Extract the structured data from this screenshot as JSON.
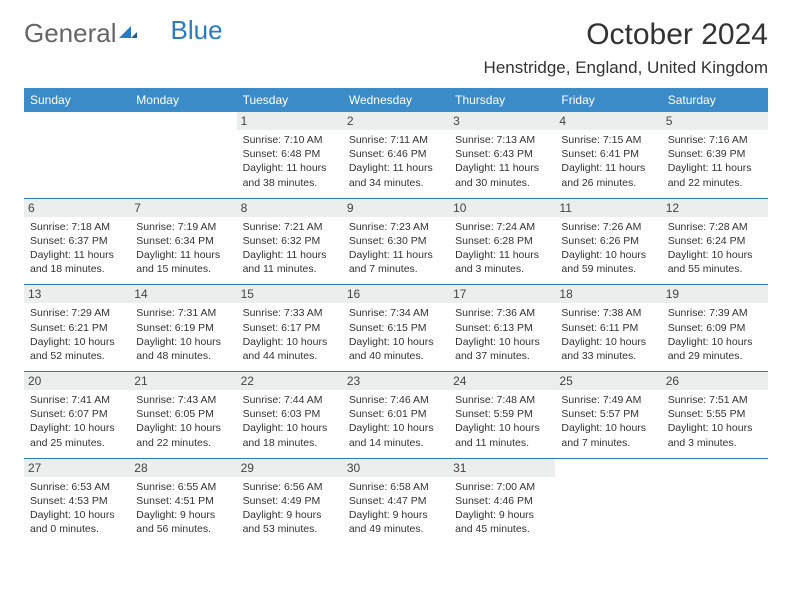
{
  "logo": {
    "text1": "General",
    "text2": "Blue"
  },
  "title": "October 2024",
  "location": "Henstridge, England, United Kingdom",
  "colors": {
    "header_bg": "#3b8bc9",
    "border": "#2a7bbf",
    "daynum_bg": "#eceded",
    "logo_blue": "#2a7bbf"
  },
  "weekdays": [
    "Sunday",
    "Monday",
    "Tuesday",
    "Wednesday",
    "Thursday",
    "Friday",
    "Saturday"
  ],
  "weeks": [
    [
      {
        "day": "",
        "sunrise": "",
        "sunset": "",
        "daylight": ""
      },
      {
        "day": "",
        "sunrise": "",
        "sunset": "",
        "daylight": ""
      },
      {
        "day": "1",
        "sunrise": "Sunrise: 7:10 AM",
        "sunset": "Sunset: 6:48 PM",
        "daylight": "Daylight: 11 hours and 38 minutes."
      },
      {
        "day": "2",
        "sunrise": "Sunrise: 7:11 AM",
        "sunset": "Sunset: 6:46 PM",
        "daylight": "Daylight: 11 hours and 34 minutes."
      },
      {
        "day": "3",
        "sunrise": "Sunrise: 7:13 AM",
        "sunset": "Sunset: 6:43 PM",
        "daylight": "Daylight: 11 hours and 30 minutes."
      },
      {
        "day": "4",
        "sunrise": "Sunrise: 7:15 AM",
        "sunset": "Sunset: 6:41 PM",
        "daylight": "Daylight: 11 hours and 26 minutes."
      },
      {
        "day": "5",
        "sunrise": "Sunrise: 7:16 AM",
        "sunset": "Sunset: 6:39 PM",
        "daylight": "Daylight: 11 hours and 22 minutes."
      }
    ],
    [
      {
        "day": "6",
        "sunrise": "Sunrise: 7:18 AM",
        "sunset": "Sunset: 6:37 PM",
        "daylight": "Daylight: 11 hours and 18 minutes."
      },
      {
        "day": "7",
        "sunrise": "Sunrise: 7:19 AM",
        "sunset": "Sunset: 6:34 PM",
        "daylight": "Daylight: 11 hours and 15 minutes."
      },
      {
        "day": "8",
        "sunrise": "Sunrise: 7:21 AM",
        "sunset": "Sunset: 6:32 PM",
        "daylight": "Daylight: 11 hours and 11 minutes."
      },
      {
        "day": "9",
        "sunrise": "Sunrise: 7:23 AM",
        "sunset": "Sunset: 6:30 PM",
        "daylight": "Daylight: 11 hours and 7 minutes."
      },
      {
        "day": "10",
        "sunrise": "Sunrise: 7:24 AM",
        "sunset": "Sunset: 6:28 PM",
        "daylight": "Daylight: 11 hours and 3 minutes."
      },
      {
        "day": "11",
        "sunrise": "Sunrise: 7:26 AM",
        "sunset": "Sunset: 6:26 PM",
        "daylight": "Daylight: 10 hours and 59 minutes."
      },
      {
        "day": "12",
        "sunrise": "Sunrise: 7:28 AM",
        "sunset": "Sunset: 6:24 PM",
        "daylight": "Daylight: 10 hours and 55 minutes."
      }
    ],
    [
      {
        "day": "13",
        "sunrise": "Sunrise: 7:29 AM",
        "sunset": "Sunset: 6:21 PM",
        "daylight": "Daylight: 10 hours and 52 minutes."
      },
      {
        "day": "14",
        "sunrise": "Sunrise: 7:31 AM",
        "sunset": "Sunset: 6:19 PM",
        "daylight": "Daylight: 10 hours and 48 minutes."
      },
      {
        "day": "15",
        "sunrise": "Sunrise: 7:33 AM",
        "sunset": "Sunset: 6:17 PM",
        "daylight": "Daylight: 10 hours and 44 minutes."
      },
      {
        "day": "16",
        "sunrise": "Sunrise: 7:34 AM",
        "sunset": "Sunset: 6:15 PM",
        "daylight": "Daylight: 10 hours and 40 minutes."
      },
      {
        "day": "17",
        "sunrise": "Sunrise: 7:36 AM",
        "sunset": "Sunset: 6:13 PM",
        "daylight": "Daylight: 10 hours and 37 minutes."
      },
      {
        "day": "18",
        "sunrise": "Sunrise: 7:38 AM",
        "sunset": "Sunset: 6:11 PM",
        "daylight": "Daylight: 10 hours and 33 minutes."
      },
      {
        "day": "19",
        "sunrise": "Sunrise: 7:39 AM",
        "sunset": "Sunset: 6:09 PM",
        "daylight": "Daylight: 10 hours and 29 minutes."
      }
    ],
    [
      {
        "day": "20",
        "sunrise": "Sunrise: 7:41 AM",
        "sunset": "Sunset: 6:07 PM",
        "daylight": "Daylight: 10 hours and 25 minutes."
      },
      {
        "day": "21",
        "sunrise": "Sunrise: 7:43 AM",
        "sunset": "Sunset: 6:05 PM",
        "daylight": "Daylight: 10 hours and 22 minutes."
      },
      {
        "day": "22",
        "sunrise": "Sunrise: 7:44 AM",
        "sunset": "Sunset: 6:03 PM",
        "daylight": "Daylight: 10 hours and 18 minutes."
      },
      {
        "day": "23",
        "sunrise": "Sunrise: 7:46 AM",
        "sunset": "Sunset: 6:01 PM",
        "daylight": "Daylight: 10 hours and 14 minutes."
      },
      {
        "day": "24",
        "sunrise": "Sunrise: 7:48 AM",
        "sunset": "Sunset: 5:59 PM",
        "daylight": "Daylight: 10 hours and 11 minutes."
      },
      {
        "day": "25",
        "sunrise": "Sunrise: 7:49 AM",
        "sunset": "Sunset: 5:57 PM",
        "daylight": "Daylight: 10 hours and 7 minutes."
      },
      {
        "day": "26",
        "sunrise": "Sunrise: 7:51 AM",
        "sunset": "Sunset: 5:55 PM",
        "daylight": "Daylight: 10 hours and 3 minutes."
      }
    ],
    [
      {
        "day": "27",
        "sunrise": "Sunrise: 6:53 AM",
        "sunset": "Sunset: 4:53 PM",
        "daylight": "Daylight: 10 hours and 0 minutes."
      },
      {
        "day": "28",
        "sunrise": "Sunrise: 6:55 AM",
        "sunset": "Sunset: 4:51 PM",
        "daylight": "Daylight: 9 hours and 56 minutes."
      },
      {
        "day": "29",
        "sunrise": "Sunrise: 6:56 AM",
        "sunset": "Sunset: 4:49 PM",
        "daylight": "Daylight: 9 hours and 53 minutes."
      },
      {
        "day": "30",
        "sunrise": "Sunrise: 6:58 AM",
        "sunset": "Sunset: 4:47 PM",
        "daylight": "Daylight: 9 hours and 49 minutes."
      },
      {
        "day": "31",
        "sunrise": "Sunrise: 7:00 AM",
        "sunset": "Sunset: 4:46 PM",
        "daylight": "Daylight: 9 hours and 45 minutes."
      },
      {
        "day": "",
        "sunrise": "",
        "sunset": "",
        "daylight": ""
      },
      {
        "day": "",
        "sunrise": "",
        "sunset": "",
        "daylight": ""
      }
    ]
  ]
}
